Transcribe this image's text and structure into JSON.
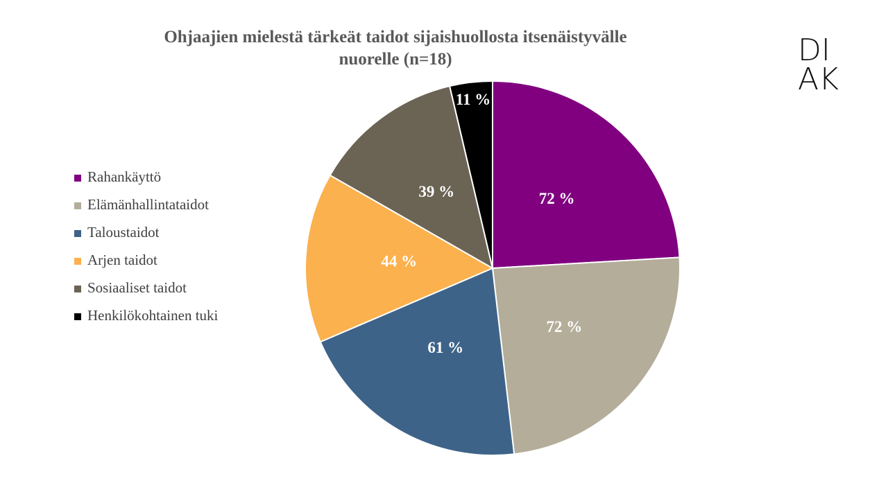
{
  "chart_data": {
    "type": "pie",
    "title": "Ohjaajien mielestä tärkeät taidot sijaishuollosta itsenäistyvälle nuorelle (n=18)",
    "categories": [
      "Rahankäyttö",
      "Elämänhallintataidot",
      "Taloustaidot",
      "Arjen taidot",
      "Sosiaaliset taidot",
      "Henkilökohtainen tuki"
    ],
    "values": [
      72,
      72,
      61,
      44,
      39,
      11
    ],
    "value_labels": [
      "72 %",
      "72 %",
      "61 %",
      "44 %",
      "39 %",
      "11 %"
    ],
    "colors": [
      "#800080",
      "#b3ad9a",
      "#3e6389",
      "#fbb14e",
      "#6b6455",
      "#000000"
    ],
    "legend": "left"
  },
  "logo_lines": [
    "DI",
    "AK"
  ]
}
